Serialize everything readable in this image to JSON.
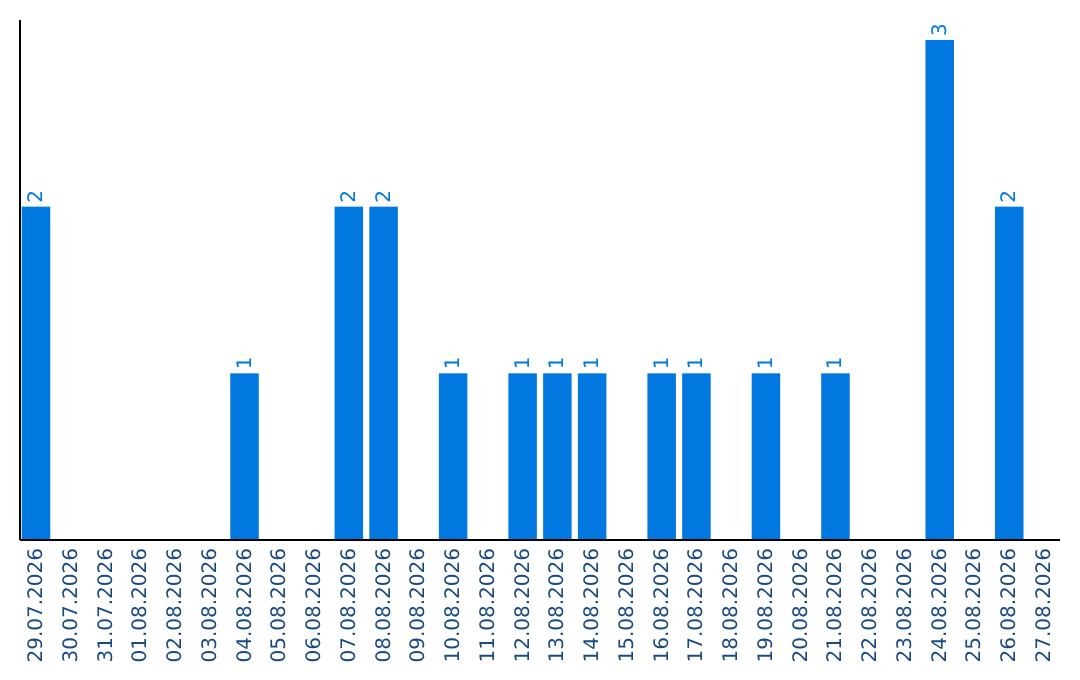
{
  "chart_data": {
    "type": "bar",
    "categories": [
      "29.07.2026",
      "30.07.2026",
      "31.07.2026",
      "01.08.2026",
      "02.08.2026",
      "03.08.2026",
      "04.08.2026",
      "05.08.2026",
      "06.08.2026",
      "07.08.2026",
      "08.08.2026",
      "09.08.2026",
      "10.08.2026",
      "11.08.2026",
      "12.08.2026",
      "13.08.2026",
      "14.08.2026",
      "15.08.2026",
      "16.08.2026",
      "17.08.2026",
      "18.08.2026",
      "19.08.2026",
      "20.08.2026",
      "21.08.2026",
      "22.08.2026",
      "23.08.2026",
      "24.08.2026",
      "25.08.2026",
      "26.08.2026",
      "27.08.2026"
    ],
    "values": [
      2,
      0,
      0,
      0,
      0,
      0,
      1,
      0,
      0,
      2,
      2,
      0,
      1,
      0,
      1,
      1,
      1,
      0,
      1,
      1,
      0,
      1,
      0,
      1,
      0,
      0,
      3,
      0,
      2,
      0
    ],
    "value_labels": [
      "2",
      null,
      null,
      null,
      null,
      null,
      "1",
      null,
      null,
      "2",
      "2",
      null,
      "1",
      null,
      "1",
      "1",
      "1",
      null,
      "1",
      "1",
      null,
      "1",
      null,
      "1",
      null,
      null,
      "3",
      null,
      "2",
      null
    ],
    "color": "#0078e0",
    "ylim": [
      0,
      3.12
    ],
    "tick_labels": "x"
  }
}
